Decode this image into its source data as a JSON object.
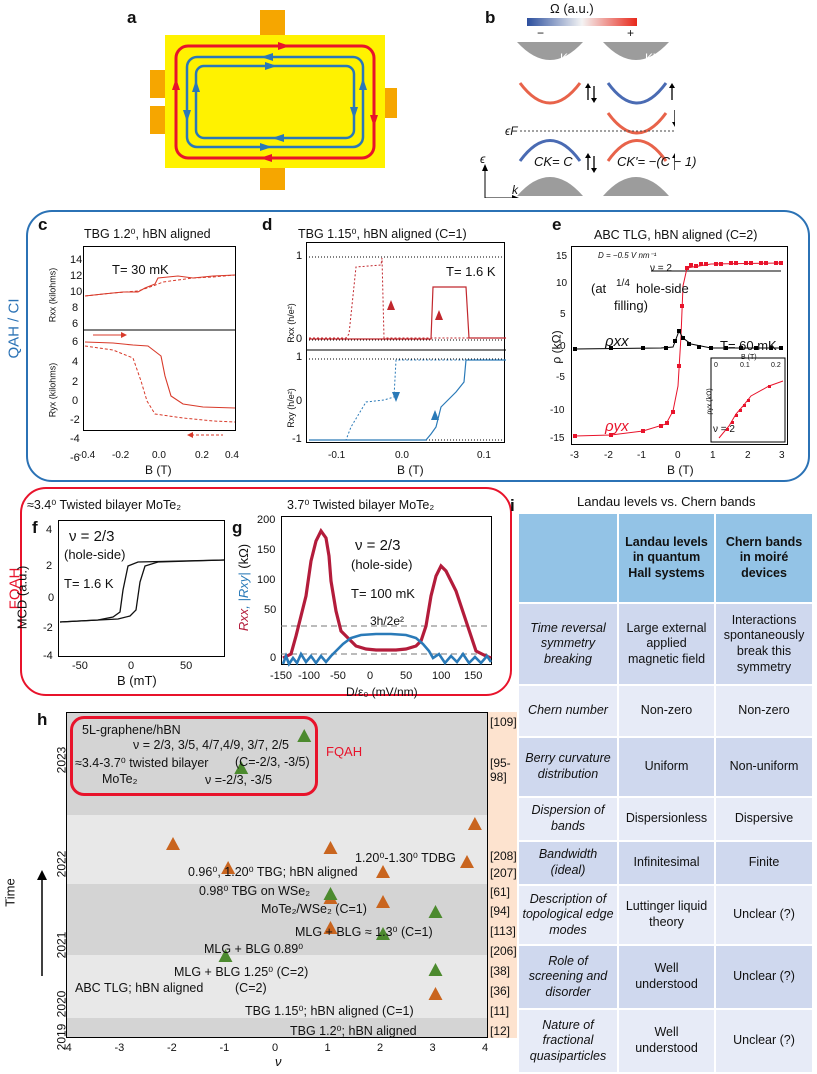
{
  "panels": {
    "a": "a",
    "b": "b",
    "c": "c",
    "d": "d",
    "e": "e",
    "f": "f",
    "g": "g",
    "h": "h",
    "i": "i"
  },
  "b": {
    "omega": "Ω (a.u.)",
    "minus": "−",
    "plus": "+",
    "K": "K",
    "Kp": "K'",
    "ef": "ϵF",
    "ck": "CK= C",
    "ckp": "CK'= −(C − 1)",
    "eps": "ϵ",
    "k": "k"
  },
  "sections": {
    "qah": "QAH / CI",
    "fqah": "FQAH"
  },
  "c": {
    "title": "TBG 1.2⁰, hBN aligned",
    "T": "T= 30 mK",
    "ylabel_top": "Rxx (kilohms)",
    "ylabel_bot": "Ryx (kilohms)",
    "xlabel": "B (T)",
    "yt_top": [
      "14",
      "12",
      "10",
      "8",
      "6"
    ],
    "yt_bot": [
      "6",
      "4",
      "2",
      "0",
      "-2",
      "-4",
      "-6"
    ],
    "xt": [
      "-0.4",
      "-0.2",
      "0.0",
      "0.2",
      "0.4"
    ]
  },
  "d": {
    "title": "TBG 1.15⁰, hBN aligned (C=1)",
    "T": "T= 1.6 K",
    "ylabel_top": "Rxx (h/e²)",
    "ylabel_bot": "Rxy (h/e²)",
    "xlabel": "B (T)",
    "yt_top": [
      "1",
      "0"
    ],
    "yt_bot": [
      "1",
      "0",
      "-1"
    ],
    "xt": [
      "-0.1",
      "0.0",
      "0.1"
    ]
  },
  "e": {
    "title": "ABC TLG, hBN aligned (C=2)",
    "D": "D = −0.5 V nm⁻¹",
    "nu": "ν = 2",
    "nu2": "ν = 2",
    "note1": "(at",
    "note_frac": "1/4",
    "note2": "hole-side",
    "note3": "filling)",
    "T": "T= 60 mK",
    "rxx": "ρxx",
    "ryx": "ρyx",
    "ylabel": "ρ (kΩ)",
    "xlabel": "B (T)",
    "yt": [
      "15",
      "10",
      "5",
      "0",
      "-5",
      "-10",
      "-15"
    ],
    "xt": [
      "-3",
      "-2",
      "-1",
      "0",
      "1",
      "2",
      "3"
    ],
    "inset_x": [
      "0",
      "0.1",
      "0.2"
    ],
    "inset_xlabel": "B (T)",
    "inset_ylabel": "ρyx (kΩ)"
  },
  "f": {
    "title": "≈3.4⁰ Twisted bilayer MoTe₂",
    "nu": "ν = 2/3",
    "side": "(hole-side)",
    "T": "T= 1.6 K",
    "ylabel": "MCD (a.u.)",
    "xlabel": "B (mT)",
    "yt": [
      "4",
      "2",
      "0",
      "-2",
      "-4"
    ],
    "xt": [
      "-50",
      "0",
      "50"
    ]
  },
  "g": {
    "title": "3.7⁰ Twisted bilayer MoTe₂",
    "nu": "ν = 2/3",
    "side": "(hole-side)",
    "T": "T= 100 mK",
    "plateau": "3h/2e²",
    "ylabel_a": "Rxx",
    "ylabel_b": ", |Rxy|",
    "ylabel_c": " (kΩ)",
    "xlabel": "D/ε₀ (mV/nm)",
    "yt": [
      "200",
      "150",
      "100",
      "50",
      "0"
    ],
    "xt": [
      "-150",
      "-100",
      "-50",
      "0",
      "50",
      "100",
      "150"
    ]
  },
  "h": {
    "time": "Time",
    "xlabel": "ν",
    "fqah": "FQAH",
    "xt": [
      "-4",
      "-3",
      "-2",
      "-1",
      "0",
      "1",
      "2",
      "3",
      "4"
    ],
    "years": [
      "2023",
      "2022",
      "2021",
      "2020",
      "2019"
    ],
    "labels": [
      "5L-graphene/hBN",
      "ν = 2/3, 3/5, 4/7,4/9, 3/7, 2/5",
      "≈3.4-3.7⁰ twisted bilayer",
      "(C=-2/3, -3/5)",
      "MoTe₂",
      "ν =-2/3, -3/5",
      "1.20⁰-1.30⁰ TDBG",
      "0.96⁰, 1.20⁰ TBG; hBN aligned",
      "0.98⁰ TBG on WSe₂",
      "MoTe₂/WSe₂ (C=1)",
      "MLG + BLG ≈ 1.3⁰ (C=1)",
      "MLG + BLG 0.89⁰",
      "MLG + BLG 1.25⁰ (C=2)",
      "ABC TLG; hBN aligned",
      "(C=2)",
      "TBG 1.15⁰; hBN aligned (C=1)",
      "TBG 1.2⁰; hBN aligned"
    ],
    "refs": [
      "[109]",
      "[95-",
      "98]",
      "[208]",
      "[207]",
      "[61]",
      "[94]",
      "[113]",
      "[206]",
      "[38]",
      "[36]",
      "[11]",
      "[12]"
    ],
    "points": [
      {
        "nu": 0.5,
        "c": "green"
      },
      {
        "nu": -0.7,
        "c": "green"
      },
      {
        "nu": 3.75,
        "c": "orange"
      },
      {
        "nu": -2.0,
        "c": "orange"
      },
      {
        "nu": -0.95,
        "c": "orange"
      },
      {
        "nu": 1.0,
        "c": "orange"
      },
      {
        "nu": 2.0,
        "c": "orange"
      },
      {
        "nu": 1.0,
        "c": "orange"
      },
      {
        "nu": 2.0,
        "c": "orange"
      },
      {
        "nu": 2.0,
        "c": "green"
      },
      {
        "nu": 3.6,
        "c": "orange"
      },
      {
        "nu": 1.0,
        "c": "orange"
      },
      {
        "nu": 1.0,
        "c": "green"
      },
      {
        "nu": 3.0,
        "c": "green"
      },
      {
        "nu": -1.0,
        "c": "green"
      },
      {
        "nu": 3.0,
        "c": "green"
      },
      {
        "nu": 3.0,
        "c": "orange"
      }
    ]
  },
  "i": {
    "title": "Landau levels vs. Chern bands",
    "col1": "Landau levels in quantum Hall systems",
    "col2": "Chern bands in moiré devices",
    "rows": [
      {
        "h": "Time reversal symmetry breaking",
        "a": "Large external applied magnetic field",
        "b": "Interactions spontaneously break this symmetry"
      },
      {
        "h": "Chern number",
        "a": "Non-zero",
        "b": "Non-zero"
      },
      {
        "h": "Berry curvature distribution",
        "a": "Uniform",
        "b": "Non-uniform"
      },
      {
        "h": "Dispersion of bands",
        "a": "Dispersionless",
        "b": "Dispersive"
      },
      {
        "h": "Bandwidth (ideal)",
        "a": "Infinitesimal",
        "b": "Finite"
      },
      {
        "h": "Description of topological edge modes",
        "a": "Luttinger liquid theory",
        "b": "Unclear (?)"
      },
      {
        "h": "Role of screening and disorder",
        "a": "Well understood",
        "b": "Unclear (?)"
      },
      {
        "h": "Nature of fractional quasiparticles",
        "a": "Well understood",
        "b": "Unclear (?)"
      }
    ]
  }
}
